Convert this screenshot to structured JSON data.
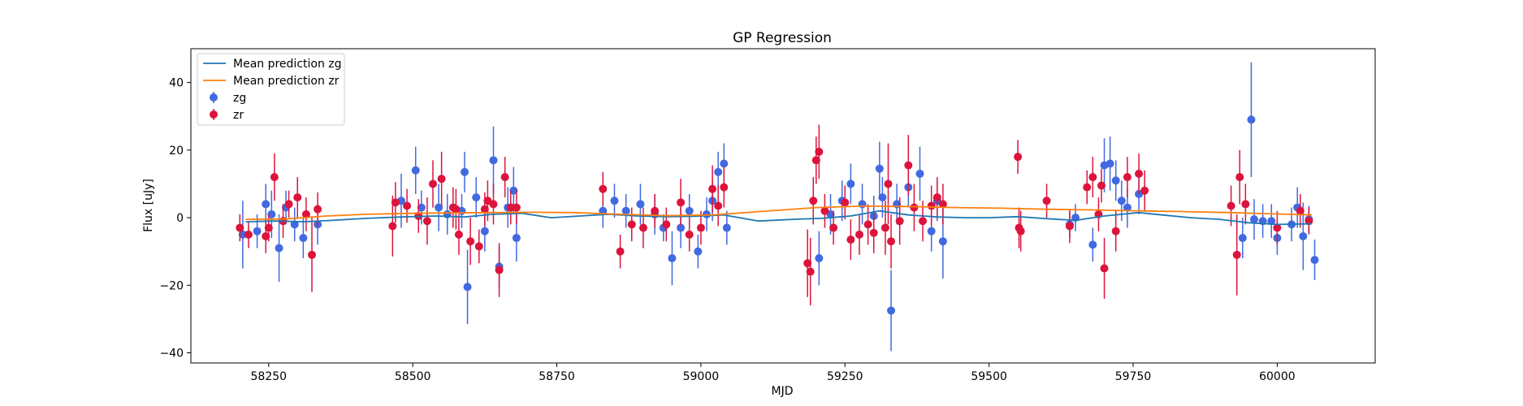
{
  "chart_data": {
    "type": "scatter",
    "title": "GP Regression",
    "xlabel": "MJD",
    "ylabel": "Flux [uJy]",
    "xlim": [
      58115,
      60170
    ],
    "ylim": [
      -43,
      50
    ],
    "xticks": [
      58250,
      58500,
      58750,
      59000,
      59250,
      59500,
      59750,
      60000
    ],
    "yticks": [
      -40,
      -20,
      0,
      20,
      40
    ],
    "legend_position": "top-left",
    "legend": [
      "Mean prediction zg",
      "Mean prediction zr",
      "zg",
      "zr"
    ],
    "colors": {
      "mean_zg": "#1f77b4",
      "mean_zr": "#ff7f0e",
      "zg": "#4169e1",
      "zr": "#dc143c"
    },
    "lines": [
      {
        "name": "Mean prediction zg",
        "x": [
          58210,
          58260,
          58310,
          58360,
          58420,
          58480,
          58540,
          58590,
          58640,
          58690,
          58740,
          58790,
          58840,
          58890,
          58940,
          58990,
          59040,
          59100,
          59160,
          59210,
          59260,
          59310,
          59360,
          59410,
          59460,
          59500,
          59550,
          59600,
          59650,
          59700,
          59760,
          59800,
          59850,
          59900,
          59950,
          60000,
          60060
        ],
        "y": [
          -1.2,
          -1.0,
          -1.2,
          -0.8,
          -0.2,
          0.2,
          0.5,
          0.2,
          1.0,
          1.3,
          0.0,
          0.5,
          1.0,
          0.5,
          0.3,
          0.4,
          0.8,
          -1.0,
          -0.5,
          -0.2,
          0.5,
          2.0,
          0.8,
          0.2,
          0.0,
          0.0,
          0.3,
          -0.3,
          -0.8,
          0.5,
          1.5,
          0.8,
          0.0,
          -0.5,
          -1.5,
          -2.0,
          -1.8
        ]
      },
      {
        "name": "Mean prediction zr",
        "x": [
          58210,
          58280,
          58350,
          58420,
          58500,
          58570,
          58640,
          58700,
          58780,
          58860,
          58940,
          59020,
          59100,
          59200,
          59280,
          59360,
          59440,
          59520,
          59600,
          59680,
          59760,
          59840,
          59920,
          59980,
          60060
        ],
        "y": [
          -0.5,
          -0.4,
          0.5,
          1.0,
          1.3,
          1.4,
          1.5,
          1.6,
          1.5,
          1.0,
          0.6,
          0.8,
          1.8,
          3.0,
          3.4,
          3.3,
          3.0,
          2.8,
          2.5,
          2.3,
          2.0,
          1.8,
          1.5,
          1.2,
          0.8
        ]
      }
    ],
    "series": [
      {
        "name": "zg",
        "points": [
          [
            58205,
            -5.0,
            10
          ],
          [
            58230,
            -4.0,
            5
          ],
          [
            58245,
            4.0,
            6
          ],
          [
            58255,
            1.0,
            7
          ],
          [
            58268,
            -9.0,
            10
          ],
          [
            58280,
            3.0,
            5
          ],
          [
            58295,
            -2.0,
            5
          ],
          [
            58310,
            -6.0,
            6
          ],
          [
            58335,
            -2.0,
            6
          ],
          [
            58480,
            5.0,
            8
          ],
          [
            58505,
            14.0,
            7
          ],
          [
            58515,
            3.0,
            5
          ],
          [
            58545,
            3.0,
            7
          ],
          [
            58560,
            1.0,
            6
          ],
          [
            58585,
            2.0,
            5
          ],
          [
            58590,
            13.5,
            6
          ],
          [
            58595,
            -20.5,
            11
          ],
          [
            58610,
            6.0,
            6
          ],
          [
            58625,
            -4.0,
            6
          ],
          [
            58640,
            17.0,
            10
          ],
          [
            58650,
            -14.5,
            6
          ],
          [
            58665,
            3.0,
            6
          ],
          [
            58675,
            8.0,
            7
          ],
          [
            58680,
            -6.0,
            7
          ],
          [
            58830,
            2.0,
            5
          ],
          [
            58850,
            5.0,
            5
          ],
          [
            58870,
            2.0,
            5
          ],
          [
            58895,
            4.0,
            6
          ],
          [
            58920,
            1.0,
            6
          ],
          [
            58935,
            -3.0,
            4
          ],
          [
            58950,
            -12.0,
            8
          ],
          [
            58965,
            -3.0,
            6
          ],
          [
            58980,
            2.0,
            5
          ],
          [
            58995,
            -10.0,
            5
          ],
          [
            59010,
            1.0,
            5
          ],
          [
            59020,
            5.0,
            6
          ],
          [
            59030,
            13.5,
            6
          ],
          [
            59040,
            16.0,
            6
          ],
          [
            59045,
            -3.0,
            5
          ],
          [
            59205,
            -12.0,
            8
          ],
          [
            59225,
            1.0,
            6
          ],
          [
            59245,
            5.0,
            6
          ],
          [
            59260,
            10.0,
            6
          ],
          [
            59280,
            4.0,
            6
          ],
          [
            59300,
            0.5,
            6
          ],
          [
            59310,
            14.5,
            8
          ],
          [
            59315,
            6.0,
            6
          ],
          [
            59330,
            -27.5,
            12
          ],
          [
            59340,
            4.0,
            6
          ],
          [
            59360,
            9.0,
            6
          ],
          [
            59380,
            13.0,
            8
          ],
          [
            59400,
            -4.0,
            6
          ],
          [
            59410,
            5.0,
            6
          ],
          [
            59420,
            -7.0,
            11
          ],
          [
            59640,
            -2.0,
            4
          ],
          [
            59650,
            0.0,
            4
          ],
          [
            59680,
            -8.0,
            5
          ],
          [
            59700,
            15.5,
            8
          ],
          [
            59710,
            16.0,
            8
          ],
          [
            59720,
            11.0,
            6
          ],
          [
            59730,
            5.0,
            6
          ],
          [
            59740,
            3.0,
            6
          ],
          [
            59760,
            7.0,
            6
          ],
          [
            59940,
            -6.0,
            6
          ],
          [
            59955,
            29.0,
            17
          ],
          [
            59960,
            -0.5,
            6
          ],
          [
            59975,
            -1.0,
            5
          ],
          [
            59990,
            -1.0,
            5
          ],
          [
            60000,
            -6.0,
            5
          ],
          [
            60025,
            -2.0,
            5
          ],
          [
            60035,
            3.0,
            6
          ],
          [
            60045,
            -5.5,
            10
          ],
          [
            60055,
            -0.5,
            4
          ],
          [
            60065,
            -12.5,
            6
          ]
        ]
      },
      {
        "name": "zr",
        "points": [
          [
            58200,
            -3.0,
            4
          ],
          [
            58215,
            -5.0,
            4
          ],
          [
            58245,
            -5.5,
            5
          ],
          [
            58250,
            -3.0,
            4
          ],
          [
            58260,
            12.0,
            7
          ],
          [
            58275,
            -1.0,
            5
          ],
          [
            58285,
            4.0,
            4
          ],
          [
            58300,
            6.0,
            6
          ],
          [
            58315,
            1.0,
            5
          ],
          [
            58325,
            -11.0,
            11
          ],
          [
            58335,
            2.5,
            5
          ],
          [
            58465,
            -2.5,
            9
          ],
          [
            58470,
            4.5,
            6
          ],
          [
            58490,
            3.5,
            5
          ],
          [
            58510,
            0.5,
            5
          ],
          [
            58525,
            -1.0,
            7
          ],
          [
            58535,
            10.0,
            7
          ],
          [
            58550,
            11.5,
            8
          ],
          [
            58570,
            3.0,
            6
          ],
          [
            58575,
            2.5,
            6
          ],
          [
            58580,
            -5.0,
            6
          ],
          [
            58600,
            -7.0,
            7
          ],
          [
            58615,
            -8.5,
            5
          ],
          [
            58625,
            2.5,
            5
          ],
          [
            58630,
            5.0,
            6
          ],
          [
            58640,
            4.0,
            6
          ],
          [
            58650,
            -15.5,
            8
          ],
          [
            58660,
            12.0,
            6
          ],
          [
            58670,
            3.0,
            5
          ],
          [
            58680,
            3.0,
            5
          ],
          [
            58830,
            8.5,
            5
          ],
          [
            58860,
            -10.0,
            5
          ],
          [
            58880,
            -2.0,
            5
          ],
          [
            58900,
            -3.0,
            6
          ],
          [
            58920,
            2.0,
            5
          ],
          [
            58940,
            -2.0,
            5
          ],
          [
            58965,
            4.5,
            7
          ],
          [
            58980,
            -5.0,
            5
          ],
          [
            59000,
            -3.0,
            5
          ],
          [
            59020,
            8.5,
            7
          ],
          [
            59030,
            3.5,
            6
          ],
          [
            59040,
            9.0,
            6
          ],
          [
            59185,
            -13.5,
            10
          ],
          [
            59190,
            -16.0,
            10
          ],
          [
            59195,
            5.0,
            7
          ],
          [
            59200,
            17.0,
            7
          ],
          [
            59205,
            19.5,
            8
          ],
          [
            59215,
            2.0,
            5
          ],
          [
            59230,
            -3.0,
            5
          ],
          [
            59250,
            4.5,
            5
          ],
          [
            59260,
            -6.5,
            6
          ],
          [
            59275,
            -5.0,
            6
          ],
          [
            59290,
            -2.0,
            6
          ],
          [
            59300,
            -4.5,
            6
          ],
          [
            59320,
            -3.0,
            8
          ],
          [
            59325,
            10.0,
            12
          ],
          [
            59330,
            -7.0,
            8
          ],
          [
            59345,
            -1.0,
            7
          ],
          [
            59360,
            15.5,
            9
          ],
          [
            59370,
            3.0,
            7
          ],
          [
            59385,
            -1.0,
            6
          ],
          [
            59400,
            3.5,
            6
          ],
          [
            59410,
            6.0,
            6
          ],
          [
            59420,
            4.0,
            6
          ],
          [
            59550,
            18.0,
            5
          ],
          [
            59552,
            -3.0,
            6
          ],
          [
            59555,
            -4.0,
            6
          ],
          [
            59600,
            5.0,
            5
          ],
          [
            59640,
            -2.5,
            5
          ],
          [
            59670,
            9.0,
            5
          ],
          [
            59680,
            12.0,
            6
          ],
          [
            59690,
            1.0,
            5
          ],
          [
            59695,
            9.5,
            5
          ],
          [
            59700,
            -15.0,
            9
          ],
          [
            59720,
            -4.0,
            6
          ],
          [
            59740,
            12.0,
            6
          ],
          [
            59760,
            13.0,
            6
          ],
          [
            59770,
            8.0,
            6
          ],
          [
            59920,
            3.5,
            6
          ],
          [
            59930,
            -11.0,
            12
          ],
          [
            59935,
            12.0,
            8
          ],
          [
            59945,
            4.0,
            6
          ],
          [
            60000,
            -3.0,
            5
          ],
          [
            60040,
            2.0,
            5
          ],
          [
            60055,
            -1.0,
            4
          ]
        ]
      }
    ]
  }
}
